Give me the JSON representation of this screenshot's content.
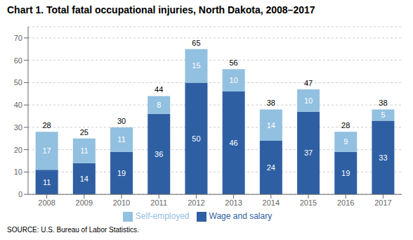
{
  "chart_data": {
    "type": "bar",
    "title": "Chart 1. Total fatal occupational injuries, North Dakota, 2008–2017",
    "categories": [
      "2008",
      "2009",
      "2010",
      "2011",
      "2012",
      "2013",
      "2014",
      "2015",
      "2016",
      "2017"
    ],
    "series": [
      {
        "name": "Wage and salary",
        "color": "#2E5FA3",
        "values": [
          11,
          14,
          19,
          36,
          50,
          46,
          24,
          37,
          19,
          33
        ]
      },
      {
        "name": "Self-employed",
        "color": "#92C0E0",
        "values": [
          17,
          11,
          11,
          8,
          15,
          10,
          14,
          10,
          9,
          5
        ]
      }
    ],
    "totals": [
      28,
      25,
      30,
      44,
      65,
      56,
      38,
      47,
      28,
      38
    ],
    "ylim": [
      0,
      75
    ],
    "yticks": [
      0,
      10,
      20,
      30,
      40,
      50,
      60,
      70
    ],
    "stacked": true,
    "data_labels": true,
    "grid": true,
    "legend": "bottom",
    "source": "SOURCE: U.S. Bureau of Labor Statistics."
  }
}
